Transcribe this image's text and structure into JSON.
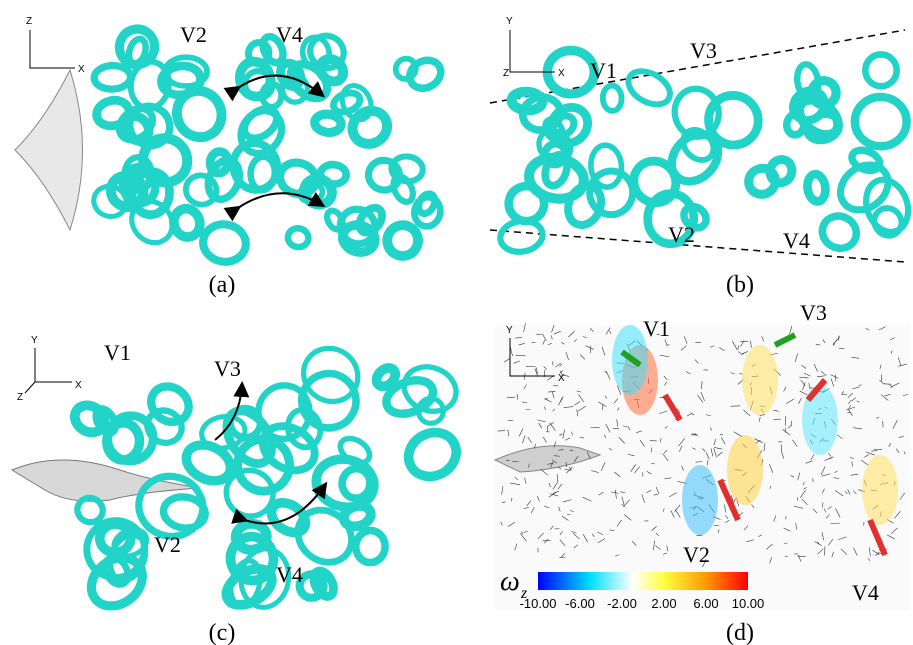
{
  "panels": [
    {
      "label": "(a)",
      "axis_labels": [
        "Z",
        "X"
      ],
      "vortex_labels": [
        "V2",
        "V4"
      ]
    },
    {
      "label": "(b)",
      "axis_labels": [
        "Y",
        "Z",
        "X"
      ],
      "vortex_labels": [
        "V1",
        "V3",
        "V2",
        "V4"
      ]
    },
    {
      "label": "(c)",
      "axis_labels": [
        "Y",
        "Z",
        "X"
      ],
      "vortex_labels": [
        "V1",
        "V3",
        "V2",
        "V4"
      ]
    },
    {
      "label": "(d)",
      "axis_labels": [
        "Y",
        "X"
      ],
      "vortex_labels": [
        "V1",
        "V3",
        "V2",
        "V4"
      ]
    }
  ],
  "colorbar": {
    "symbol": "ω",
    "subscript": "z",
    "ticks": [
      "-10.00",
      "-6.00",
      "-2.00",
      "2.00",
      "6.00",
      "10.00"
    ]
  }
}
